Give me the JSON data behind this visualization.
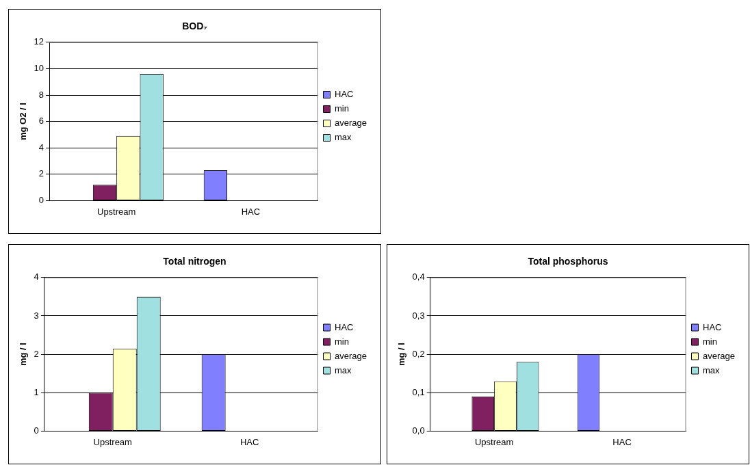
{
  "chart_data": [
    {
      "type": "bar",
      "title": "BOD₇",
      "ylabel": "mg O2 / l",
      "categories": [
        "Upstream",
        "HAC"
      ],
      "series": [
        {
          "name": "HAC",
          "color": "#8080ff",
          "values": [
            null,
            2.3
          ]
        },
        {
          "name": "min",
          "color": "#802060",
          "values": [
            1.2,
            null
          ]
        },
        {
          "name": "average",
          "color": "#ffffc0",
          "values": [
            4.9,
            null
          ]
        },
        {
          "name": "max",
          "color": "#a0e0e0",
          "values": [
            9.6,
            null
          ]
        }
      ],
      "ylim": [
        0,
        12
      ],
      "yticks": [
        0,
        2,
        4,
        6,
        8,
        10,
        12
      ],
      "grid": "y",
      "legend": "right"
    },
    {
      "type": "bar",
      "title": "Total nitrogen",
      "ylabel": "mg / l",
      "categories": [
        "Upstream",
        "HAC"
      ],
      "series": [
        {
          "name": "HAC",
          "color": "#8080ff",
          "values": [
            null,
            2.0
          ]
        },
        {
          "name": "min",
          "color": "#802060",
          "values": [
            1.0,
            null
          ]
        },
        {
          "name": "average",
          "color": "#ffffc0",
          "values": [
            2.15,
            null
          ]
        },
        {
          "name": "max",
          "color": "#a0e0e0",
          "values": [
            3.5,
            null
          ]
        }
      ],
      "ylim": [
        0,
        4
      ],
      "yticks": [
        0,
        1,
        2,
        3,
        4
      ],
      "grid": "y",
      "legend": "right"
    },
    {
      "type": "bar",
      "title": "Total phosphorus",
      "ylabel": "mg / l",
      "categories": [
        "Upstream",
        "HAC"
      ],
      "series": [
        {
          "name": "HAC",
          "color": "#8080ff",
          "values": [
            null,
            0.2
          ]
        },
        {
          "name": "min",
          "color": "#802060",
          "values": [
            0.09,
            null
          ]
        },
        {
          "name": "average",
          "color": "#ffffc0",
          "values": [
            0.13,
            null
          ]
        },
        {
          "name": "max",
          "color": "#a0e0e0",
          "values": [
            0.18,
            null
          ]
        }
      ],
      "ylim": [
        0,
        0.4
      ],
      "yticks": [
        {
          "value": 0,
          "label": "0,0"
        },
        {
          "value": 0.1,
          "label": "0,1"
        },
        {
          "value": 0.2,
          "label": "0,2"
        },
        {
          "value": 0.3,
          "label": "0,3"
        },
        {
          "value": 0.4,
          "label": "0,4"
        }
      ],
      "grid": "y",
      "legend": "right"
    }
  ]
}
